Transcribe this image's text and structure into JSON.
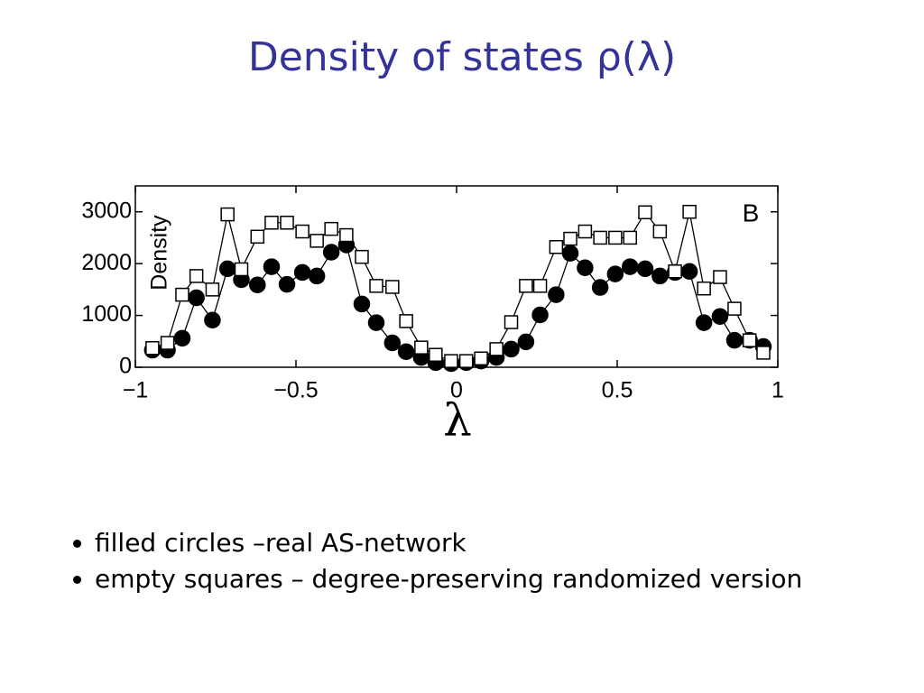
{
  "title": "Density of states ρ(λ)",
  "bullets": [
    "filled circles –real AS-network",
    "empty squares – degree-preserving randomized version"
  ],
  "chart_data": {
    "type": "line",
    "ylabel": "Density",
    "xlabel": "λ",
    "panel_label": "B",
    "xlim": [
      -1,
      1
    ],
    "ylim": [
      0,
      3500
    ],
    "xticks": [
      {
        "value": -1,
        "label": "−1"
      },
      {
        "value": -0.5,
        "label": "−0.5"
      },
      0,
      0.5,
      1
    ],
    "yticks": [
      0,
      1000,
      2000,
      3000
    ],
    "x": [
      -0.947,
      -0.9,
      -0.854,
      -0.81,
      -0.76,
      -0.713,
      -0.67,
      -0.62,
      -0.576,
      -0.528,
      -0.48,
      -0.435,
      -0.39,
      -0.343,
      -0.295,
      -0.25,
      -0.2,
      -0.157,
      -0.11,
      -0.065,
      -0.017,
      0.03,
      0.076,
      0.124,
      0.17,
      0.216,
      0.26,
      0.31,
      0.354,
      0.4,
      0.447,
      0.494,
      0.54,
      0.587,
      0.633,
      0.68,
      0.725,
      0.77,
      0.82,
      0.865,
      0.912,
      0.955
    ],
    "series": [
      {
        "color": "#000000",
        "marker": "circle",
        "filled": true,
        "values": [
          330,
          330,
          560,
          1340,
          910,
          1900,
          1690,
          1590,
          1940,
          1600,
          1830,
          1760,
          2220,
          2360,
          1220,
          860,
          470,
          300,
          190,
          90,
          70,
          90,
          120,
          190,
          350,
          490,
          1010,
          1400,
          2200,
          1920,
          1540,
          1800,
          1940,
          1900,
          1760,
          1830,
          1850,
          860,
          980,
          520,
          520,
          400
        ]
      },
      {
        "color": "#000000",
        "marker": "square",
        "filled": false,
        "values": [
          370,
          470,
          1400,
          1760,
          1500,
          2950,
          1890,
          2520,
          2790,
          2790,
          2620,
          2440,
          2670,
          2550,
          2130,
          1570,
          1550,
          890,
          380,
          240,
          120,
          120,
          170,
          350,
          870,
          1570,
          1570,
          2320,
          2480,
          2620,
          2500,
          2500,
          2500,
          2990,
          2620,
          1850,
          3000,
          1520,
          1740,
          1130,
          520,
          280
        ]
      }
    ]
  }
}
